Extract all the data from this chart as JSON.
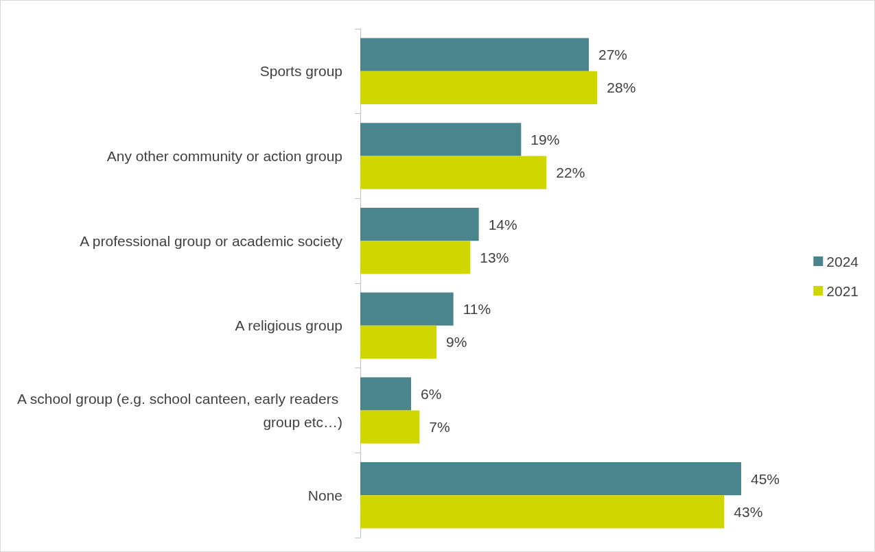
{
  "chart_data": {
    "type": "bar",
    "orientation": "horizontal",
    "categories": [
      "Sports group",
      "Any other community or action group",
      "A professional group or academic society",
      "A religious group",
      "A school group (e.g. school canteen, early readers group etc…)",
      "None"
    ],
    "series": [
      {
        "name": "2024",
        "color": "#4a848c",
        "values": [
          27,
          19,
          14,
          11,
          6,
          45
        ],
        "value_labels": [
          "27%",
          "19%",
          "14%",
          "11%",
          "6%",
          "45%"
        ]
      },
      {
        "name": "2021",
        "color": "#cfd600",
        "values": [
          28,
          22,
          13,
          9,
          7,
          43
        ],
        "value_labels": [
          "28%",
          "22%",
          "13%",
          "9%",
          "7%",
          "43%"
        ]
      }
    ],
    "legend": "right",
    "grid": false
  }
}
